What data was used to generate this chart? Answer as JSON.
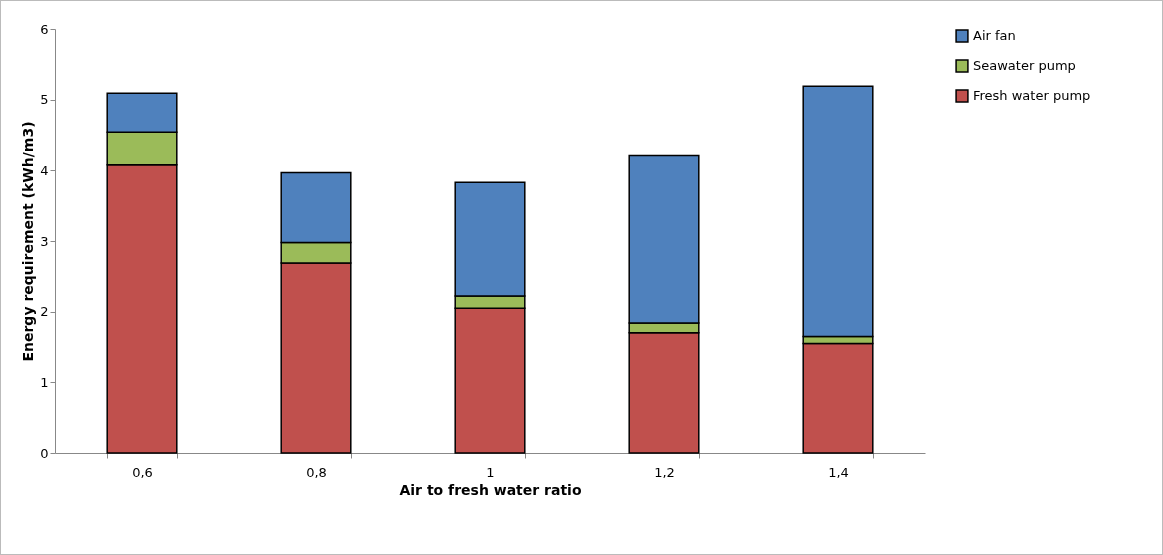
{
  "chart_data": {
    "type": "bar",
    "stacked": true,
    "xlabel": "Air to fresh water ratio",
    "ylabel": "Energy requirement (kWh/m3)",
    "categories": [
      "0,6",
      "0,8",
      "1",
      "1,2",
      "1,4"
    ],
    "series": [
      {
        "name": "Fresh water pump",
        "color": "#c0504d",
        "values": [
          4.08,
          2.69,
          2.05,
          1.7,
          1.55
        ]
      },
      {
        "name": "Seawater pump",
        "color": "#9bbb59",
        "values": [
          0.46,
          0.29,
          0.17,
          0.14,
          0.1
        ]
      },
      {
        "name": "Air fan",
        "color": "#4f81bd",
        "values": [
          0.55,
          0.99,
          1.61,
          2.37,
          3.54
        ]
      }
    ],
    "ylim": [
      0,
      6
    ],
    "yticks": [
      0,
      1,
      2,
      3,
      4,
      5,
      6
    ],
    "grid": false,
    "legend": "right"
  }
}
